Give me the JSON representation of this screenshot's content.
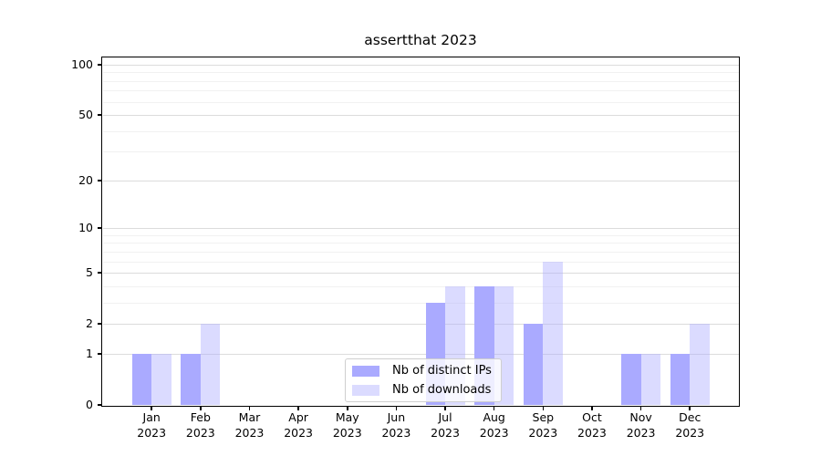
{
  "chart_data": {
    "type": "bar",
    "title": "assertthat 2023",
    "categories": [
      "Jan 2023",
      "Feb 2023",
      "Mar 2023",
      "Apr 2023",
      "May 2023",
      "Jun 2023",
      "Jul 2023",
      "Aug 2023",
      "Sep 2023",
      "Oct 2023",
      "Nov 2023",
      "Dec 2023"
    ],
    "series": [
      {
        "name": "Nb of distinct IPs",
        "color": "#aaaaff",
        "css_color": "rgba(170,170,255,1)",
        "values": [
          1,
          1,
          0,
          0,
          0,
          0,
          3,
          4,
          2,
          0,
          1,
          1
        ]
      },
      {
        "name": "Nb of downloads",
        "color": "#ddddff",
        "css_color": "rgba(170,170,255,0.42)",
        "values": [
          1,
          2,
          0,
          0,
          0,
          0,
          4,
          4,
          6,
          0,
          1,
          2
        ]
      }
    ],
    "xlabel": "",
    "ylabel": "",
    "yscale": "log1p",
    "ylim": [
      0,
      110.4
    ],
    "y_ticks": [
      0,
      1,
      2,
      5,
      10,
      20,
      50,
      100
    ],
    "y_minor_ticks": [
      3,
      4,
      6,
      7,
      8,
      9,
      30,
      40,
      60,
      70,
      80,
      90
    ],
    "grid": "horizontal",
    "legend_position": "lower center inside plot",
    "axis_color": "#000000",
    "major_grid_color": "#dcdcdc",
    "minor_grid_color": "#f1f1f1",
    "background_color": "#ffffff"
  }
}
